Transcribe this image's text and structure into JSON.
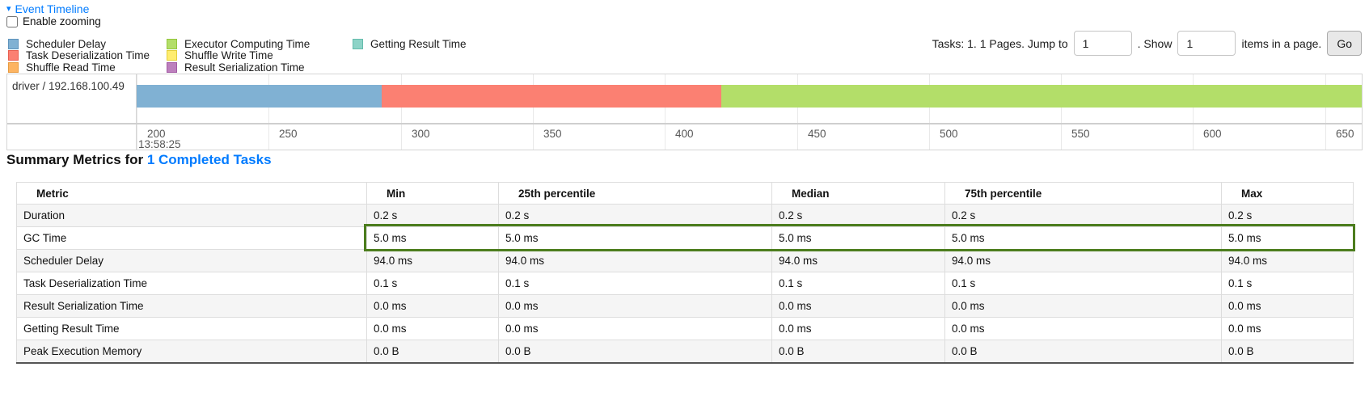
{
  "colors": {
    "link": "#007bff",
    "highlight_green": "#4c7d1e",
    "stripe": "#f5f5f5",
    "axis_text": "#575757"
  },
  "event_timeline": {
    "title": "Event Timeline",
    "collapse_icon": "caret-down-icon",
    "enable_zooming_label": "Enable zooming",
    "legend": [
      {
        "name": "scheduler-delay",
        "label": "Scheduler Delay",
        "color": "#80B1D3",
        "border": "#5e93bc",
        "column": 1
      },
      {
        "name": "task-deserialization-time",
        "label": "Task Deserialization Time",
        "color": "#FB8072",
        "border": "#e85f50",
        "column": 1
      },
      {
        "name": "shuffle-read-time",
        "label": "Shuffle Read Time",
        "color": "#FDB462",
        "border": "#e89a3f",
        "column": 1
      },
      {
        "name": "executor-computing-time",
        "label": "Executor Computing Time",
        "color": "#B3DE69",
        "border": "#94c63d",
        "column": 2
      },
      {
        "name": "shuffle-write-time",
        "label": "Shuffle Write Time",
        "color": "#FFED6F",
        "border": "#e3cf3c",
        "column": 2
      },
      {
        "name": "result-serialization-time",
        "label": "Result Serialization Time",
        "color": "#BC80BD",
        "border": "#a35ba4",
        "column": 2
      },
      {
        "name": "getting-result-time",
        "label": "Getting Result Time",
        "color": "#8DD3C7",
        "border": "#65bcac",
        "column": 3
      }
    ],
    "timeline": {
      "row_label": "driver / 192.168.100.49",
      "axis_ticks": [
        "200",
        "250",
        "300",
        "350",
        "400",
        "450",
        "500",
        "550",
        "600",
        "650"
      ],
      "axis_date_label": "13:58:25",
      "segments": [
        {
          "name": "scheduler-delay",
          "color": "#80B1D3",
          "width_pct": 20.0
        },
        {
          "name": "task-deserialization-time",
          "color": "#FB8072",
          "width_pct": 27.75
        },
        {
          "name": "executor-computing-time",
          "color": "#B3DE69",
          "width_pct": 52.25
        }
      ]
    }
  },
  "pagination": {
    "tasks_text": "Tasks: 1. 1 Pages. Jump to",
    "jump_value": "1",
    "show_text": ". Show",
    "show_value": "1",
    "items_text": "items in a page.",
    "go_label": "Go"
  },
  "summary": {
    "title_prefix": "Summary Metrics for ",
    "title_link": "1 Completed Tasks",
    "table": {
      "headers": [
        "Metric",
        "Min",
        "25th percentile",
        "Median",
        "75th percentile",
        "Max"
      ],
      "rows": [
        {
          "metric": "Duration",
          "values": [
            "0.2 s",
            "0.2 s",
            "0.2 s",
            "0.2 s",
            "0.2 s"
          ],
          "highlighted": false
        },
        {
          "metric": "GC Time",
          "values": [
            "5.0 ms",
            "5.0 ms",
            "5.0 ms",
            "5.0 ms",
            "5.0 ms"
          ],
          "highlighted": true
        },
        {
          "metric": "Scheduler Delay",
          "values": [
            "94.0 ms",
            "94.0 ms",
            "94.0 ms",
            "94.0 ms",
            "94.0 ms"
          ],
          "highlighted": false
        },
        {
          "metric": "Task Deserialization Time",
          "values": [
            "0.1 s",
            "0.1 s",
            "0.1 s",
            "0.1 s",
            "0.1 s"
          ],
          "highlighted": false
        },
        {
          "metric": "Result Serialization Time",
          "values": [
            "0.0 ms",
            "0.0 ms",
            "0.0 ms",
            "0.0 ms",
            "0.0 ms"
          ],
          "highlighted": false
        },
        {
          "metric": "Getting Result Time",
          "values": [
            "0.0 ms",
            "0.0 ms",
            "0.0 ms",
            "0.0 ms",
            "0.0 ms"
          ],
          "highlighted": false
        },
        {
          "metric": "Peak Execution Memory",
          "values": [
            "0.0 B",
            "0.0 B",
            "0.0 B",
            "0.0 B",
            "0.0 B"
          ],
          "highlighted": false
        }
      ]
    }
  }
}
